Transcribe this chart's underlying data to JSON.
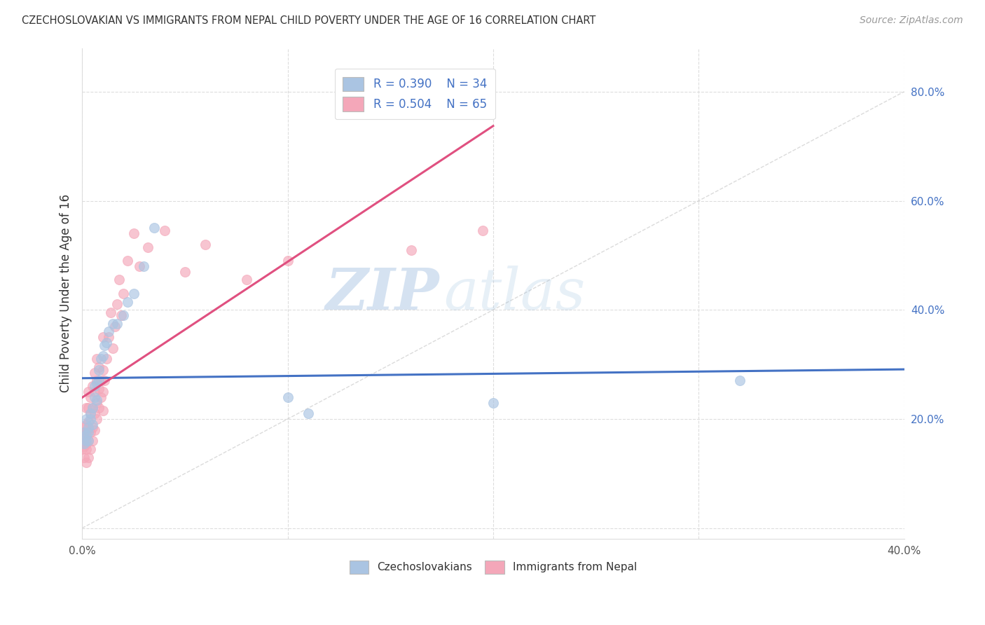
{
  "title": "CZECHOSLOVAKIAN VS IMMIGRANTS FROM NEPAL CHILD POVERTY UNDER THE AGE OF 16 CORRELATION CHART",
  "source": "Source: ZipAtlas.com",
  "ylabel": "Child Poverty Under the Age of 16",
  "xlim": [
    0.0,
    0.4
  ],
  "ylim": [
    -0.02,
    0.88
  ],
  "legend_r1": "R = 0.390",
  "legend_n1": "N = 34",
  "legend_r2": "R = 0.504",
  "legend_n2": "N = 65",
  "color_czech": "#aac4e2",
  "color_nepal": "#f4a7b9",
  "color_line_czech": "#4472c4",
  "color_line_nepal": "#e05080",
  "color_diag": "#cccccc",
  "watermark_zip": "ZIP",
  "watermark_atlas": "atlas",
  "czech_x": [
    0.001,
    0.001,
    0.002,
    0.002,
    0.002,
    0.003,
    0.003,
    0.003,
    0.004,
    0.004,
    0.005,
    0.005,
    0.006,
    0.006,
    0.007,
    0.007,
    0.008,
    0.008,
    0.009,
    0.01,
    0.011,
    0.012,
    0.013,
    0.015,
    0.017,
    0.02,
    0.022,
    0.025,
    0.03,
    0.035,
    0.1,
    0.11,
    0.2,
    0.32
  ],
  "czech_y": [
    0.175,
    0.155,
    0.16,
    0.17,
    0.2,
    0.175,
    0.185,
    0.16,
    0.2,
    0.21,
    0.19,
    0.22,
    0.26,
    0.24,
    0.265,
    0.235,
    0.29,
    0.27,
    0.31,
    0.315,
    0.335,
    0.34,
    0.36,
    0.375,
    0.375,
    0.39,
    0.415,
    0.43,
    0.48,
    0.55,
    0.24,
    0.21,
    0.23,
    0.27
  ],
  "nepal_x": [
    0.0,
    0.0,
    0.0,
    0.001,
    0.001,
    0.001,
    0.001,
    0.001,
    0.002,
    0.002,
    0.002,
    0.002,
    0.002,
    0.002,
    0.003,
    0.003,
    0.003,
    0.003,
    0.003,
    0.004,
    0.004,
    0.004,
    0.004,
    0.005,
    0.005,
    0.005,
    0.005,
    0.006,
    0.006,
    0.006,
    0.006,
    0.007,
    0.007,
    0.007,
    0.007,
    0.008,
    0.008,
    0.008,
    0.009,
    0.009,
    0.01,
    0.01,
    0.01,
    0.01,
    0.011,
    0.012,
    0.013,
    0.014,
    0.015,
    0.016,
    0.017,
    0.018,
    0.019,
    0.02,
    0.022,
    0.025,
    0.028,
    0.032,
    0.04,
    0.05,
    0.06,
    0.08,
    0.1,
    0.16,
    0.195
  ],
  "nepal_y": [
    0.155,
    0.145,
    0.165,
    0.13,
    0.15,
    0.175,
    0.185,
    0.165,
    0.12,
    0.145,
    0.155,
    0.175,
    0.19,
    0.22,
    0.13,
    0.16,
    0.195,
    0.22,
    0.25,
    0.145,
    0.175,
    0.21,
    0.24,
    0.16,
    0.185,
    0.22,
    0.26,
    0.18,
    0.21,
    0.25,
    0.285,
    0.2,
    0.23,
    0.27,
    0.31,
    0.22,
    0.255,
    0.295,
    0.24,
    0.27,
    0.215,
    0.25,
    0.29,
    0.35,
    0.27,
    0.31,
    0.35,
    0.395,
    0.33,
    0.37,
    0.41,
    0.455,
    0.39,
    0.43,
    0.49,
    0.54,
    0.48,
    0.515,
    0.545,
    0.47,
    0.52,
    0.455,
    0.49,
    0.51,
    0.545
  ]
}
